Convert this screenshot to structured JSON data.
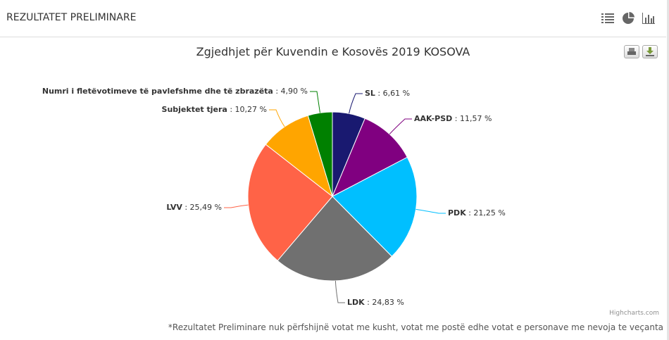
{
  "header": {
    "title": "REZULTATET PRELIMINARE",
    "icons": [
      "list-icon",
      "pie-chart-icon",
      "bar-chart-icon"
    ]
  },
  "chart_data": {
    "type": "pie",
    "title": "Zgjedhjet për Kuvendin e Kosovës 2019 KOSOVA",
    "slices": [
      {
        "name": "SL",
        "value": 6.61,
        "value_label": "6,61 %",
        "color": "#191970"
      },
      {
        "name": "AAK-PSD",
        "value": 11.57,
        "value_label": "11,57 %",
        "color": "#800080"
      },
      {
        "name": "PDK",
        "value": 21.25,
        "value_label": "21,25 %",
        "color": "#00BFFF"
      },
      {
        "name": "LDK",
        "value": 24.83,
        "value_label": "24,83 %",
        "color": "#707070"
      },
      {
        "name": "LVV",
        "value": 25.49,
        "value_label": "25,49 %",
        "color": "#FF6347"
      },
      {
        "name": "Subjektet tjera",
        "value": 10.27,
        "value_label": "10,27 %",
        "color": "#FFA500"
      },
      {
        "name": "Numri i fletëvotimeve të pavlefshme dhe të zbrazëta",
        "value": 4.9,
        "value_label": "4,90 %",
        "color": "#008000"
      }
    ]
  },
  "credit": "Highcharts.com",
  "footnote": "*Rezultatet Preliminare nuk përfshijnë votat me kusht, votat me postë edhe votat e personave me nevoja te veçanta"
}
